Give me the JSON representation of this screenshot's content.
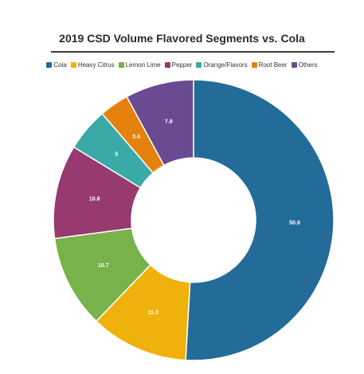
{
  "chart_data": {
    "type": "pie",
    "title": "2019 CSD Volume Flavored Segments vs. Cola",
    "categories": [
      "Cola",
      "Heavy Citrus",
      "Lemon Lime",
      "Pepper",
      "Orange/Flavors",
      "Root Beer",
      "Others"
    ],
    "values": [
      50.9,
      11.3,
      10.7,
      10.8,
      5,
      3.4,
      7.9
    ],
    "colors": [
      "#236b98",
      "#efb10c",
      "#77b24b",
      "#963a6f",
      "#3aaaa7",
      "#e5820f",
      "#6a4a90"
    ],
    "donut": true,
    "legend_position": "top"
  }
}
